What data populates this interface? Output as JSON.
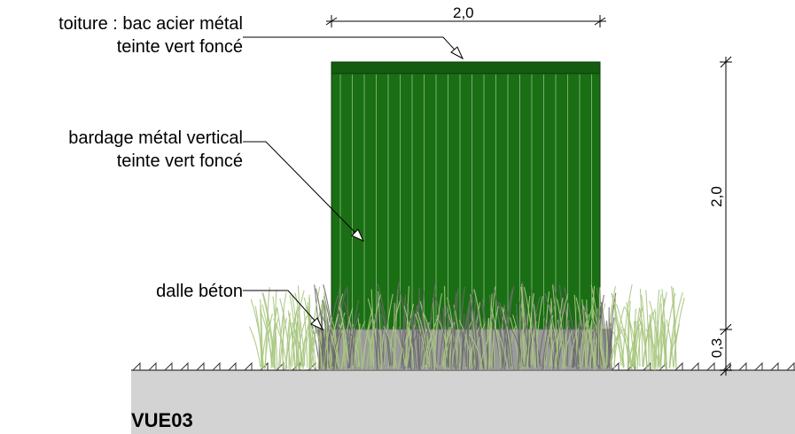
{
  "view_title": "VUE03",
  "annotations": {
    "roof": {
      "line1": "toiture : bac acier métal",
      "line2": "teinte vert foncé"
    },
    "cladding": {
      "line1": "bardage métal vertical",
      "line2": "teinte vert foncé"
    },
    "slab": {
      "line1": "dalle béton"
    }
  },
  "dimensions": {
    "width": "2,0",
    "height": "2,0",
    "slab_height": "0,3"
  },
  "colors": {
    "cladding": "#1a6e14",
    "roof": "#145c10",
    "ground": "#d3d3d3",
    "grass": "#a9c77f",
    "grass_dark": "#6b6b6b"
  }
}
